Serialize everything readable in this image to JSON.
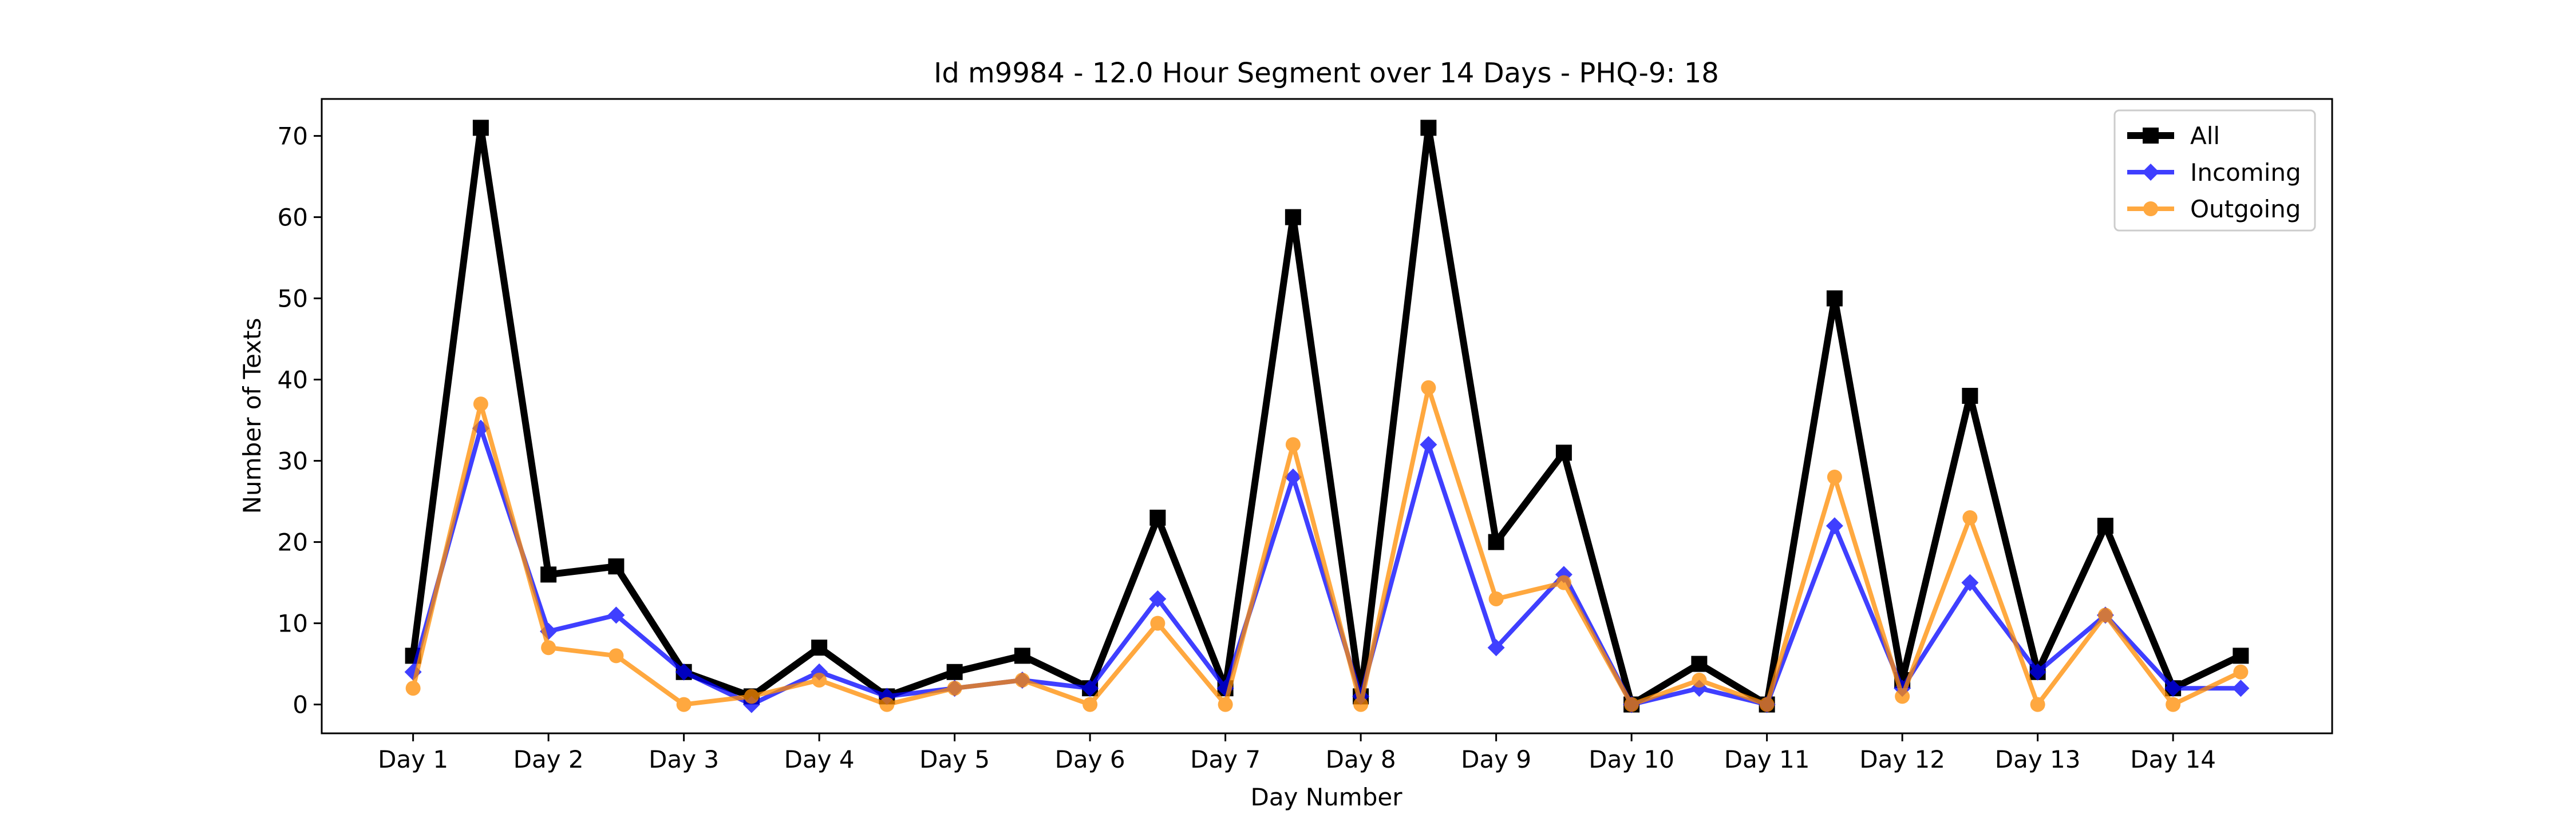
{
  "chart_data": {
    "type": "line",
    "title": "Id m9984 - 12.0 Hour Segment over 14 Days - PHQ-9: 18",
    "xlabel": "Day Number",
    "ylabel": "Number of Texts",
    "x": [
      0,
      1,
      2,
      3,
      4,
      5,
      6,
      7,
      8,
      9,
      10,
      11,
      12,
      13,
      14,
      15,
      16,
      17,
      18,
      19,
      20,
      21,
      22,
      23,
      24,
      25,
      26,
      27
    ],
    "xticks": [
      {
        "value": 0,
        "label": "Day 1"
      },
      {
        "value": 2,
        "label": "Day 2"
      },
      {
        "value": 4,
        "label": "Day 3"
      },
      {
        "value": 6,
        "label": "Day 4"
      },
      {
        "value": 8,
        "label": "Day 5"
      },
      {
        "value": 10,
        "label": "Day 6"
      },
      {
        "value": 12,
        "label": "Day 7"
      },
      {
        "value": 14,
        "label": "Day 8"
      },
      {
        "value": 16,
        "label": "Day 9"
      },
      {
        "value": 18,
        "label": "Day 10"
      },
      {
        "value": 20,
        "label": "Day 11"
      },
      {
        "value": 22,
        "label": "Day 12"
      },
      {
        "value": 24,
        "label": "Day 13"
      },
      {
        "value": 26,
        "label": "Day 14"
      }
    ],
    "yticks": [
      0,
      10,
      20,
      30,
      40,
      50,
      60,
      70
    ],
    "xlim": [
      -1.35,
      28.35
    ],
    "ylim": [
      -3.55,
      74.55
    ],
    "grid": false,
    "legend_position": "top-right",
    "series": [
      {
        "name": "All",
        "color": "#000000",
        "marker": "square",
        "values": [
          6,
          71,
          16,
          17,
          4,
          1,
          7,
          1,
          4,
          6,
          2,
          23,
          2,
          60,
          1,
          71,
          20,
          31,
          0,
          5,
          0,
          50,
          3,
          38,
          4,
          22,
          2,
          6
        ]
      },
      {
        "name": "Incoming",
        "color": "#0000ff",
        "marker": "diamond",
        "values": [
          4,
          34,
          9,
          11,
          4,
          0,
          4,
          1,
          2,
          3,
          2,
          13,
          2,
          28,
          1,
          32,
          7,
          16,
          0,
          2,
          0,
          22,
          2,
          15,
          4,
          11,
          2,
          2
        ]
      },
      {
        "name": "Outgoing",
        "color": "#ff8c00",
        "marker": "circle",
        "values": [
          2,
          37,
          7,
          6,
          0,
          1,
          3,
          0,
          2,
          3,
          0,
          10,
          0,
          32,
          0,
          39,
          13,
          15,
          0,
          3,
          0,
          28,
          1,
          23,
          0,
          11,
          0,
          4
        ]
      }
    ]
  }
}
